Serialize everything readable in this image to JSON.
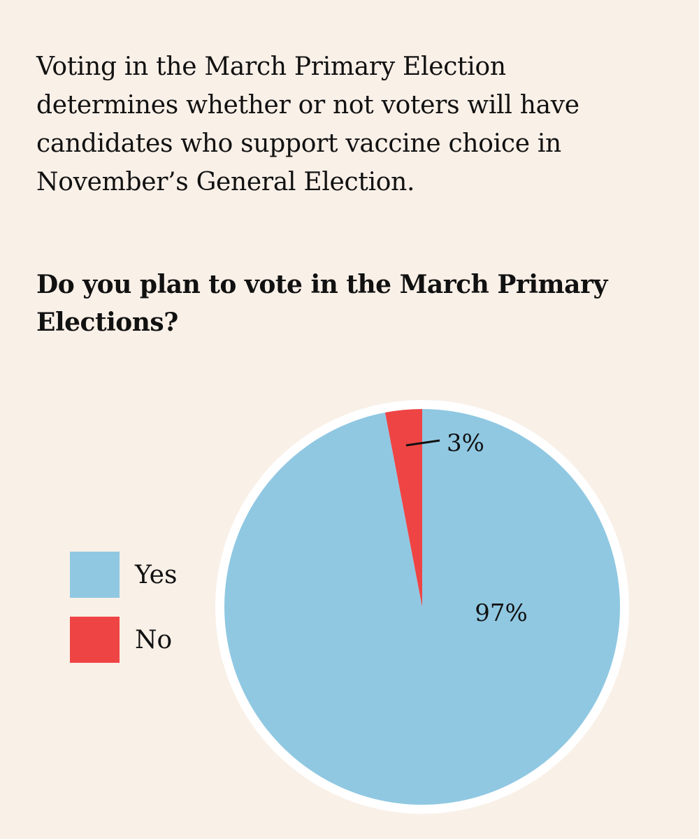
{
  "intro_text": "Voting in the March Primary Election determines whether or not voters will have candidates who support vaccine choice in November’s General Election.",
  "question": "Do you plan to vote in the March Primary Elections?",
  "colors": {
    "background": "#f9f0e8",
    "yes": "#90c8e2",
    "no": "#ef4444",
    "pie_border": "#ffffff",
    "text": "#111111"
  },
  "chart_data": {
    "type": "pie",
    "title": "Do you plan to vote in the March Primary Elections?",
    "slices": [
      {
        "label": "Yes",
        "value": 97,
        "display": "97%",
        "color": "#90c8e2"
      },
      {
        "label": "No",
        "value": 3,
        "display": "3%",
        "color": "#ef4444"
      }
    ],
    "legend_position": "left"
  }
}
